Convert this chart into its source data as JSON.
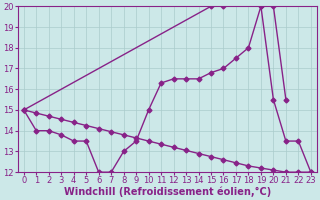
{
  "background_color": "#cce8e8",
  "line_color": "#882288",
  "grid_color": "#aacccc",
  "xlabel": "Windchill (Refroidissement éolien,°C)",
  "xlim": [
    -0.5,
    23.5
  ],
  "ylim": [
    12,
    20
  ],
  "yticks": [
    12,
    13,
    14,
    15,
    16,
    17,
    18,
    19,
    20
  ],
  "xticks": [
    0,
    1,
    2,
    3,
    4,
    5,
    6,
    7,
    8,
    9,
    10,
    11,
    12,
    13,
    14,
    15,
    16,
    17,
    18,
    19,
    20,
    21,
    22,
    23
  ],
  "line1_x": [
    0,
    1,
    2,
    3,
    4,
    5,
    6,
    7,
    8,
    9,
    10,
    11,
    12,
    13,
    14,
    15,
    16,
    17,
    18,
    19,
    20,
    21,
    22,
    23
  ],
  "line1_y": [
    15.0,
    14.85,
    14.7,
    14.55,
    14.4,
    14.25,
    14.1,
    13.95,
    13.8,
    13.65,
    13.5,
    13.35,
    13.2,
    13.05,
    12.9,
    12.75,
    12.6,
    12.45,
    12.3,
    12.2,
    12.1,
    12.0,
    12.0,
    12.0
  ],
  "line2_x": [
    0,
    1,
    2,
    3,
    4,
    5,
    6,
    7,
    8,
    9,
    10,
    11,
    12,
    13,
    14,
    15,
    16,
    17,
    18,
    19,
    20,
    21,
    22,
    23
  ],
  "line2_y": [
    15.0,
    14.0,
    14.0,
    13.8,
    13.5,
    13.5,
    12.0,
    12.0,
    13.0,
    13.5,
    15.0,
    16.3,
    16.5,
    16.5,
    16.5,
    16.8,
    17.0,
    17.5,
    18.0,
    20.0,
    15.5,
    13.5,
    13.5,
    12.0
  ],
  "line3_x": [
    0,
    15,
    16,
    19,
    20,
    21
  ],
  "line3_y": [
    15.0,
    20.0,
    20.0,
    20.0,
    20.0,
    15.5
  ],
  "marker": "D",
  "marker_size": 2.5,
  "linewidth": 1.0,
  "xlabel_fontsize": 7,
  "tick_fontsize": 6,
  "tick_color": "#882288",
  "label_color": "#882288"
}
